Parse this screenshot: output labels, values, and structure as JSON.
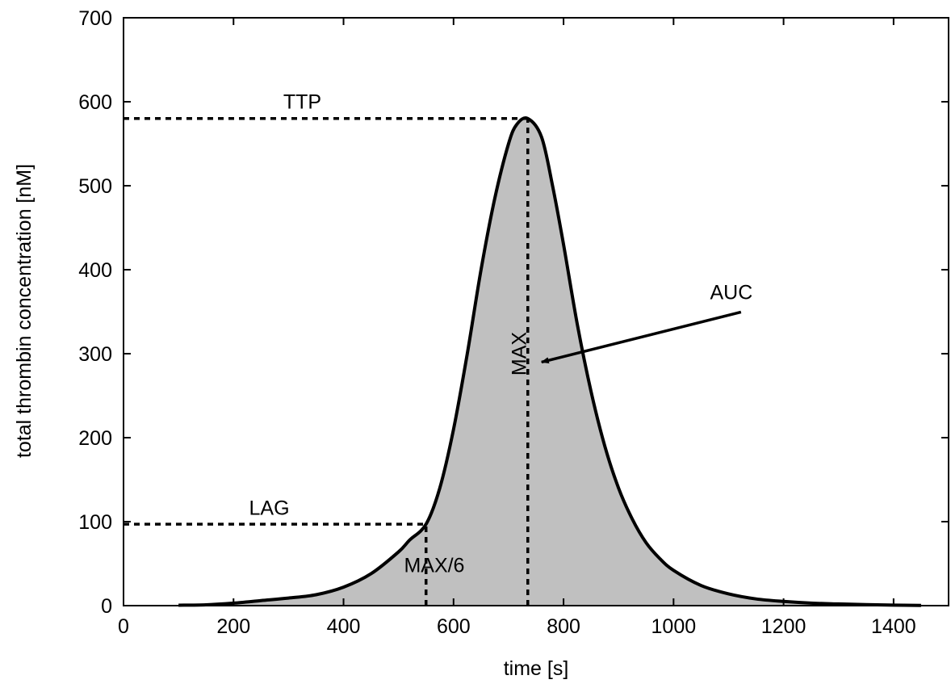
{
  "chart_data": {
    "type": "area",
    "title": "",
    "xlabel": "time [s]",
    "ylabel": "total thrombin concentration [nM]",
    "xlim": [
      0,
      1500
    ],
    "ylim": [
      0,
      700
    ],
    "xticks": [
      0,
      200,
      400,
      600,
      800,
      1000,
      1200,
      1400
    ],
    "yticks": [
      0,
      100,
      200,
      300,
      400,
      500,
      600,
      700
    ],
    "grid": false,
    "legend": "none",
    "fill_color": "#c0c0c0",
    "line_color": "#000000",
    "series": [
      {
        "x": [
          100,
          150,
          200,
          250,
          300,
          350,
          400,
          450,
          500,
          520,
          550,
          575,
          600,
          625,
          650,
          675,
          700,
          715,
          735,
          760,
          780,
          800,
          825,
          850,
          875,
          900,
          925,
          950,
          975,
          1000,
          1050,
          1100,
          1150,
          1200,
          1250,
          1300,
          1350,
          1400,
          1450
        ],
        "y": [
          0.5,
          1,
          3,
          6,
          9,
          13,
          22,
          38,
          64,
          78,
          97,
          140,
          210,
          300,
          400,
          485,
          550,
          573,
          580,
          558,
          500,
          430,
          335,
          255,
          190,
          140,
          103,
          75,
          56,
          42,
          24,
          14,
          8,
          5,
          3,
          2,
          1.2,
          0.6,
          0.3
        ]
      }
    ],
    "reference_lines": [
      {
        "label": "TTP",
        "y": 580,
        "x_from": 0,
        "x_to": 735
      },
      {
        "label": "LAG",
        "y": 97,
        "x_from": 0,
        "x_to": 550
      },
      {
        "label": "MAX",
        "x": 735,
        "y_from": 0,
        "y_to": 580
      },
      {
        "label": "MAX/6",
        "x": 550,
        "y_from": 0,
        "y_to": 97
      }
    ],
    "annotations": [
      {
        "text": "TTP",
        "x": 325,
        "y": 592
      },
      {
        "text": "LAG",
        "x": 265,
        "y": 108
      },
      {
        "text": "MAX",
        "x": 720,
        "y": 300,
        "rotated": true
      },
      {
        "text": "MAX/6",
        "x": 565,
        "y": 40
      },
      {
        "text": "AUC",
        "x": 1105,
        "y": 365,
        "arrow_to": [
          760,
          290
        ]
      }
    ]
  }
}
